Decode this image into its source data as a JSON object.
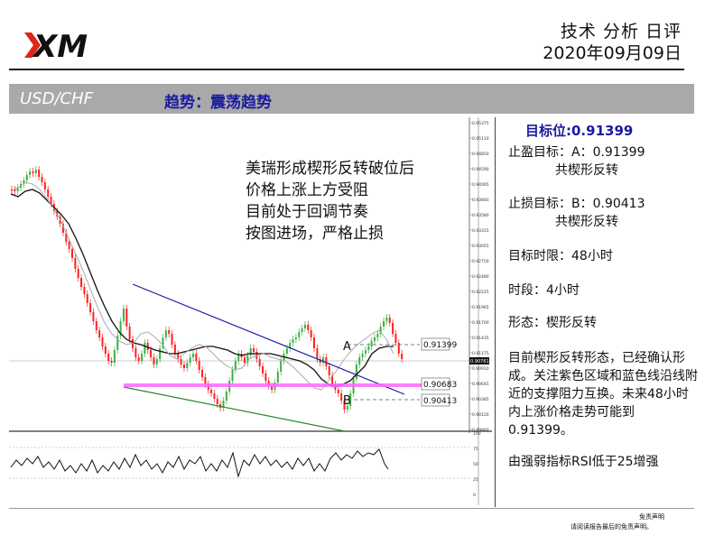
{
  "header": {
    "logo_text": "XM",
    "title": "技术 分析 日评",
    "date": "2020年09月09日"
  },
  "banner": {
    "pair": "USD/CHF",
    "trend": "趋势：震荡趋势"
  },
  "chart": {
    "annotation_lines": [
      "美瑞形成楔形反转破位后",
      "价格上涨上方受阻",
      "目前处于回调节奏",
      "按图进场，严格止损"
    ],
    "level_a": "0.91399",
    "level_mid": "0.90683",
    "level_b": "0.90413",
    "label_a": "A",
    "label_b": "B",
    "current_price": "0.90761",
    "price_ticks": [
      "0.95375",
      "0.95110",
      "0.94850",
      "0.94590",
      "0.94065",
      "0.93840",
      "0.93580",
      "0.93315",
      "0.93055",
      "0.92750",
      "0.92480",
      "0.92225",
      "0.91965",
      "0.91700",
      "0.91435",
      "0.91175",
      "0.90910",
      "0.90645",
      "0.90385",
      "0.90120",
      "0.89860"
    ],
    "rsi_ticks": [
      "100",
      "75",
      "50",
      "25",
      "0"
    ],
    "colors": {
      "upper_trendline": "#1a1aa0",
      "lower_trendline": "#2a8a2a",
      "support_band": "#ff66ff",
      "candle_up": "#3cb043",
      "candle_down": "#ff2020",
      "ma_slow": "#111111",
      "ma_fast": "#999999"
    }
  },
  "right_panel": {
    "target": "目标位:0.91399",
    "take_profit_label": "止盈目标：A：0.91399",
    "take_profit_sub": "共楔形反转",
    "stop_loss_label": "止损目标：B：0.90413",
    "stop_loss_sub": "共楔形反转",
    "time_limit": "目标时限：48小时",
    "timeframe": "时段：4小时",
    "pattern": "形态：楔形反转",
    "paragraph": "目前楔形反转形态，已经确认形成。关注紫色区域和蓝色线沿线附近的支撑阻力互换。未来48小时内上涨价格走势可能到0.91399。",
    "rsi_note": "由强弱指标RSI低于25增强"
  },
  "footer": {
    "disclaimer_title": "免责声明",
    "disclaimer_text": "请阅读报告最后的免责声明。"
  }
}
